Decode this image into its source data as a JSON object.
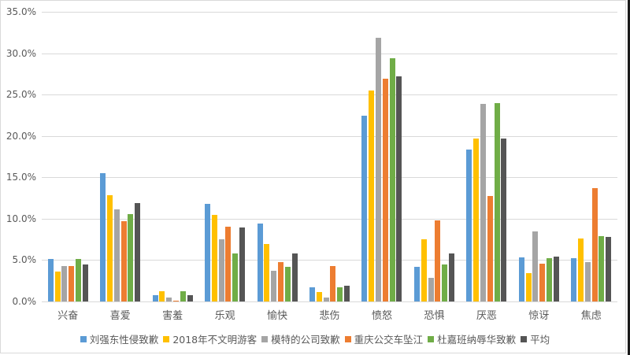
{
  "chart_data": {
    "type": "bar",
    "title": "",
    "xlabel": "",
    "ylabel": "",
    "ylim": [
      0,
      35
    ],
    "y_ticks": [
      "0.0%",
      "5.0%",
      "10.0%",
      "15.0%",
      "20.0%",
      "25.0%",
      "30.0%",
      "35.0%"
    ],
    "grid": true,
    "legend_position": "bottom",
    "categories": [
      "兴奋",
      "喜爱",
      "害羞",
      "乐观",
      "愉快",
      "悲伤",
      "愤怒",
      "恐惧",
      "厌恶",
      "惊讶",
      "焦虑"
    ],
    "series": [
      {
        "name": "刘强东性侵致歉",
        "color": "#5B9BD5",
        "values": [
          5.1,
          15.5,
          0.8,
          11.8,
          9.4,
          1.7,
          22.4,
          4.2,
          18.4,
          5.3,
          5.2
        ]
      },
      {
        "name": "2018年不文明游客",
        "color": "#FFC000",
        "values": [
          3.6,
          12.8,
          1.2,
          10.5,
          6.9,
          1.1,
          25.5,
          7.5,
          19.7,
          3.4,
          7.6
        ]
      },
      {
        "name": "模特的公司致歉",
        "color": "#A5A5A5",
        "values": [
          4.3,
          11.1,
          0.5,
          7.5,
          3.7,
          0.5,
          31.9,
          2.9,
          23.9,
          8.5,
          4.8
        ]
      },
      {
        "name": "重庆公交车坠江",
        "color": "#ED7D31",
        "values": [
          4.3,
          9.7,
          0.1,
          9.0,
          4.8,
          4.3,
          26.9,
          9.8,
          12.7,
          4.6,
          13.7
        ]
      },
      {
        "name": "杜嘉班纳辱华致歉",
        "color": "#70AD47",
        "values": [
          5.1,
          10.6,
          1.2,
          5.8,
          4.2,
          1.7,
          29.4,
          4.5,
          24.0,
          5.2,
          7.9
        ]
      },
      {
        "name": "平均",
        "color": "#555555",
        "values": [
          4.5,
          11.9,
          0.8,
          8.9,
          5.8,
          1.9,
          27.2,
          5.8,
          19.7,
          5.4,
          7.8
        ]
      }
    ],
    "value_format": "percent"
  }
}
